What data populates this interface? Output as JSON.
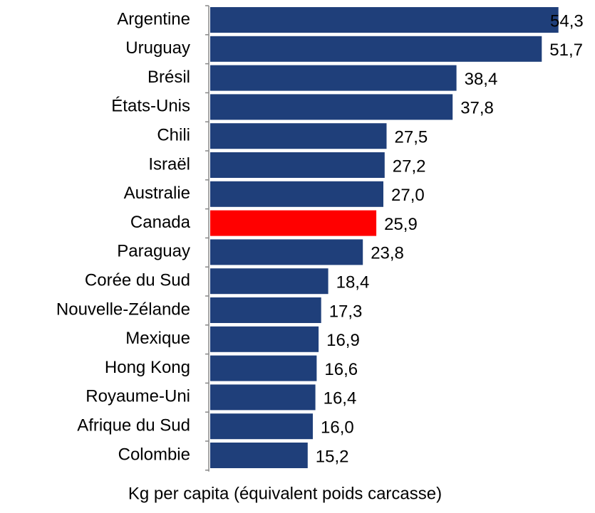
{
  "chart_data": {
    "type": "barh",
    "x_label": "Kg per capita (équivalent poids carcasse)",
    "categories": [
      "Argentine",
      "Uruguay",
      "Brésil",
      "États-Unis",
      "Chili",
      "Israël",
      "Australie",
      "Canada",
      "Paraguay",
      "Corée du Sud",
      "Nouvelle-Zélande",
      "Mexique",
      "Hong Kong",
      "Royaume-Uni",
      "Afrique du Sud",
      "Colombie"
    ],
    "values": [
      54.3,
      51.7,
      38.4,
      37.8,
      27.5,
      27.2,
      27.0,
      25.9,
      23.8,
      18.4,
      17.3,
      16.9,
      16.6,
      16.4,
      16.0,
      15.2
    ],
    "value_labels": [
      "54,3",
      "51,7",
      "38,4",
      "37,8",
      "27,5",
      "27,2",
      "27,0",
      "25,9",
      "23,8",
      "18,4",
      "17,3",
      "16,9",
      "16,6",
      "16,4",
      "16,0",
      "15,2"
    ],
    "colors": [
      "#1f3f7a",
      "#1f3f7a",
      "#1f3f7a",
      "#1f3f7a",
      "#1f3f7a",
      "#1f3f7a",
      "#1f3f7a",
      "#ff0000",
      "#1f3f7a",
      "#1f3f7a",
      "#1f3f7a",
      "#1f3f7a",
      "#1f3f7a",
      "#1f3f7a",
      "#1f3f7a",
      "#1f3f7a"
    ],
    "xlim": [
      0,
      60
    ]
  }
}
